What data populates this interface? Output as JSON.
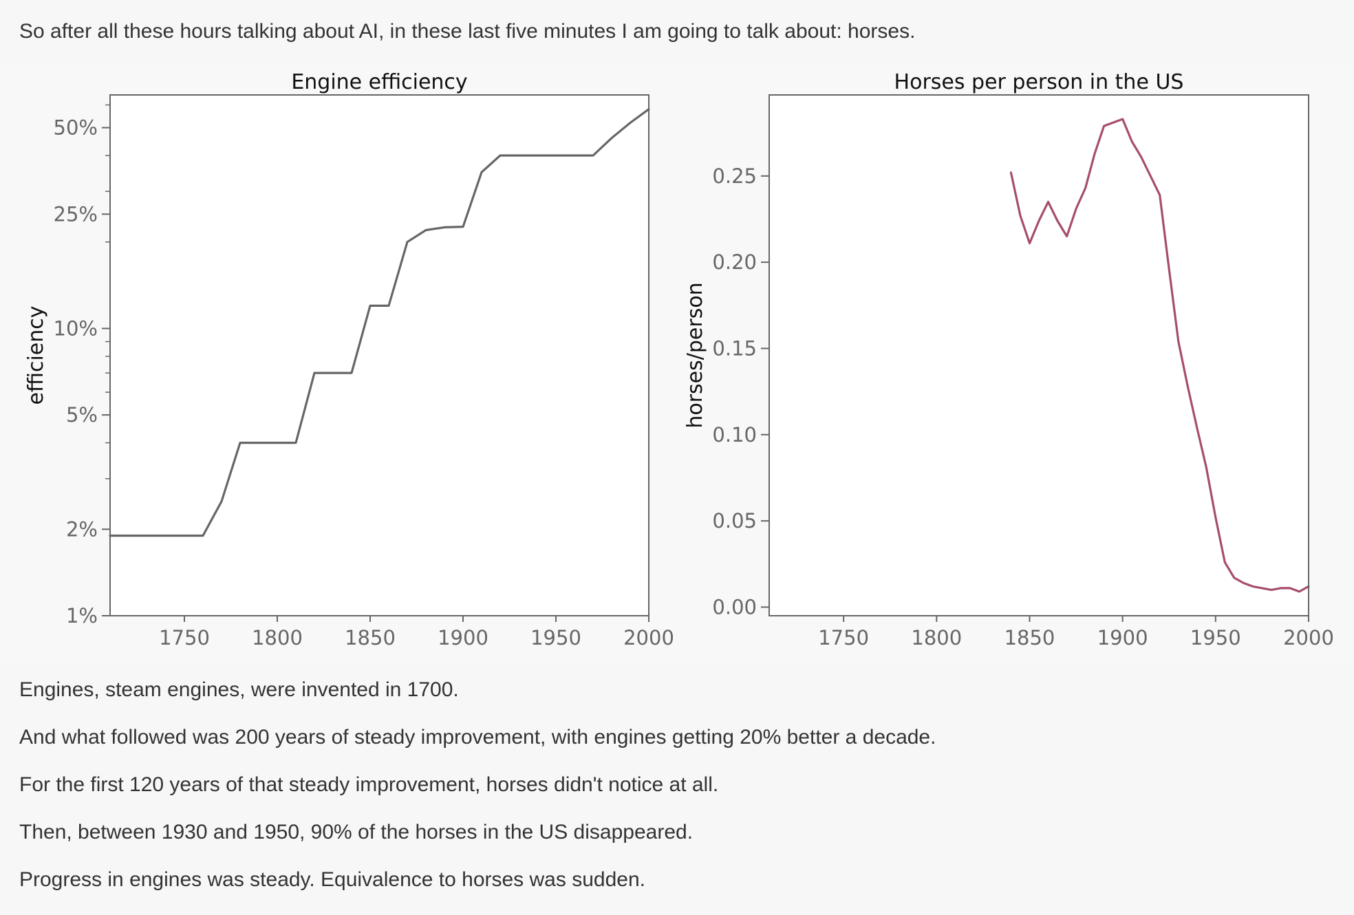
{
  "intro": "So after all these hours talking about AI, in these last five minutes I am going to talk about: horses.",
  "outro": [
    "Engines, steam engines, were invented in 1700.",
    "And what followed was 200 years of steady improvement, with engines getting 20% better a decade.",
    "For the first 120 years of that steady improvement, horses didn't notice at all.",
    "Then, between 1930 and 1950, 90% of the horses in the US disappeared.",
    "Progress in engines was steady. Equivalence to horses was sudden."
  ],
  "chart_data": [
    {
      "type": "line",
      "title": "Engine efficiency",
      "xlabel": "",
      "ylabel": "efficiency",
      "yscale": "log",
      "xlim": [
        1710,
        2000
      ],
      "ylim": [
        0.01,
        0.65
      ],
      "x_ticks": [
        1750,
        1800,
        1850,
        1900,
        1950,
        2000
      ],
      "x_tick_labels": [
        "1750",
        "1800",
        "1850",
        "1900",
        "1950",
        "2000"
      ],
      "y_ticks": [
        0.01,
        0.02,
        0.05,
        0.1,
        0.25,
        0.5
      ],
      "y_tick_labels": [
        "1%",
        "2%",
        "5%",
        "10%",
        "25%",
        "50%"
      ],
      "grid": false,
      "line_color": "#666666",
      "series": [
        {
          "x": [
            1710,
            1760,
            1770,
            1780,
            1790,
            1800,
            1810,
            1820,
            1830,
            1840,
            1850,
            1860,
            1870,
            1880,
            1890,
            1900,
            1910,
            1920,
            1930,
            1940,
            1950,
            1960,
            1970,
            1980,
            1990,
            2000
          ],
          "values": [
            0.019,
            0.019,
            0.025,
            0.04,
            0.04,
            0.04,
            0.04,
            0.07,
            0.07,
            0.07,
            0.12,
            0.12,
            0.2,
            0.22,
            0.225,
            0.226,
            0.35,
            0.4,
            0.4,
            0.4,
            0.4,
            0.4,
            0.4,
            0.46,
            0.52,
            0.58
          ]
        }
      ]
    },
    {
      "type": "line",
      "title": "Horses per person in the US",
      "xlabel": "",
      "ylabel": "horses/person",
      "xlim": [
        1710,
        2000
      ],
      "ylim": [
        -0.005,
        0.297
      ],
      "x_ticks": [
        1750,
        1800,
        1850,
        1900,
        1950,
        2000
      ],
      "x_tick_labels": [
        "1750",
        "1800",
        "1850",
        "1900",
        "1950",
        "2000"
      ],
      "y_ticks": [
        0.0,
        0.05,
        0.1,
        0.15,
        0.2,
        0.25
      ],
      "y_tick_labels": [
        "0.00",
        "0.05",
        "0.10",
        "0.15",
        "0.20",
        "0.25"
      ],
      "grid": false,
      "line_color": "#a64d6e",
      "series": [
        {
          "x": [
            1840,
            1845,
            1850,
            1855,
            1860,
            1865,
            1870,
            1875,
            1880,
            1885,
            1890,
            1895,
            1900,
            1905,
            1910,
            1915,
            1920,
            1925,
            1930,
            1935,
            1940,
            1945,
            1950,
            1955,
            1960,
            1965,
            1970,
            1975,
            1980,
            1985,
            1990,
            1995,
            2000
          ],
          "values": [
            0.252,
            0.227,
            0.211,
            0.224,
            0.235,
            0.224,
            0.215,
            0.231,
            0.243,
            0.263,
            0.279,
            0.281,
            0.283,
            0.27,
            0.261,
            0.25,
            0.239,
            0.196,
            0.154,
            0.128,
            0.104,
            0.081,
            0.052,
            0.026,
            0.017,
            0.014,
            0.012,
            0.011,
            0.01,
            0.011,
            0.011,
            0.009,
            0.012
          ]
        }
      ]
    }
  ]
}
